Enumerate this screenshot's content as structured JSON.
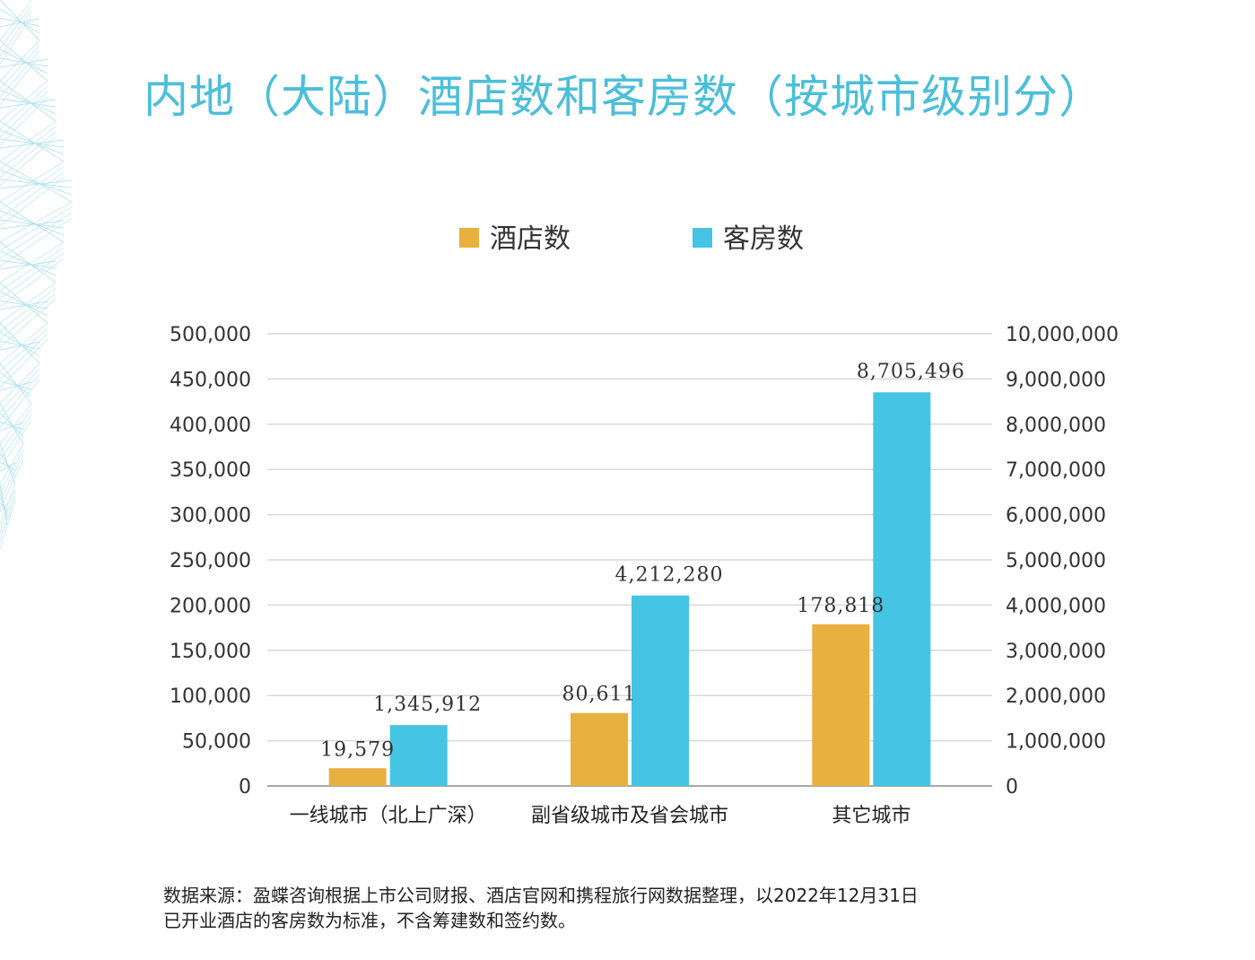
{
  "title": "内地（大陆）酒店数和客房数（按城市级别分）",
  "source": {
    "line1": "数据来源：盈蝶咨询根据上市公司财报、酒店官网和携程旅行网数据整理，以2022年12月31日",
    "line2": "已开业酒店的客房数为标准，不含筹建数和签约数。"
  },
  "colors": {
    "hotels": "#e8b03f",
    "rooms": "#45c5e3",
    "title": "#4bbfd9",
    "grid": "#d9d9d9"
  },
  "chart_data": {
    "type": "bar",
    "categories": [
      "一线城市（北上广深）",
      "副省级城市及省会城市",
      "其它城市"
    ],
    "series": [
      {
        "name": "酒店数",
        "axis": "left",
        "values": [
          19579,
          80611,
          178818
        ],
        "labels": [
          "19,579",
          "80,611",
          "178,818"
        ]
      },
      {
        "name": "客房数",
        "axis": "right",
        "values": [
          1345912,
          4212280,
          8705496
        ],
        "labels": [
          "1,345,912",
          "4,212,280",
          "8,705,496"
        ]
      }
    ],
    "ylim_left": [
      0,
      500000
    ],
    "ylim_right": [
      0,
      10000000
    ],
    "left_ticks": [
      "0",
      "50,000",
      "100,000",
      "150,000",
      "200,000",
      "250,000",
      "300,000",
      "350,000",
      "400,000",
      "450,000",
      "500,000"
    ],
    "right_ticks": [
      "0",
      "1,000,000",
      "2,000,000",
      "3,000,000",
      "4,000,000",
      "5,000,000",
      "6,000,000",
      "7,000,000",
      "8,000,000",
      "9,000,000",
      "10,000,000"
    ],
    "legend": "top",
    "grid": true
  }
}
